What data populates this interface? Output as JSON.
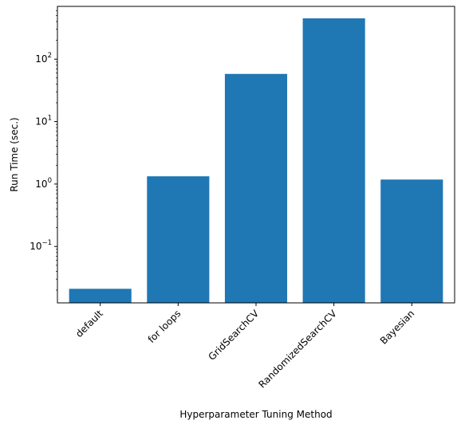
{
  "chart_data": {
    "type": "bar",
    "title": "",
    "xlabel": "Hyperparameter Tuning Method",
    "ylabel": "Run Time (sec.)",
    "yscale": "log",
    "ylim": [
      0.0125,
      700
    ],
    "categories": [
      "default",
      "for loops",
      "GridSearchCV",
      "RandomizedSearchCV",
      "Bayesian"
    ],
    "values": [
      0.021,
      1.33,
      58,
      450,
      1.18
    ],
    "y_ticks": [
      {
        "value": 0.1,
        "base": "10",
        "exp": "−1"
      },
      {
        "value": 1,
        "base": "10",
        "exp": "0"
      },
      {
        "value": 10,
        "base": "10",
        "exp": "1"
      },
      {
        "value": 100,
        "base": "10",
        "exp": "2"
      }
    ],
    "bar_color": "#1f77b4",
    "grid": false,
    "legend": "none"
  }
}
